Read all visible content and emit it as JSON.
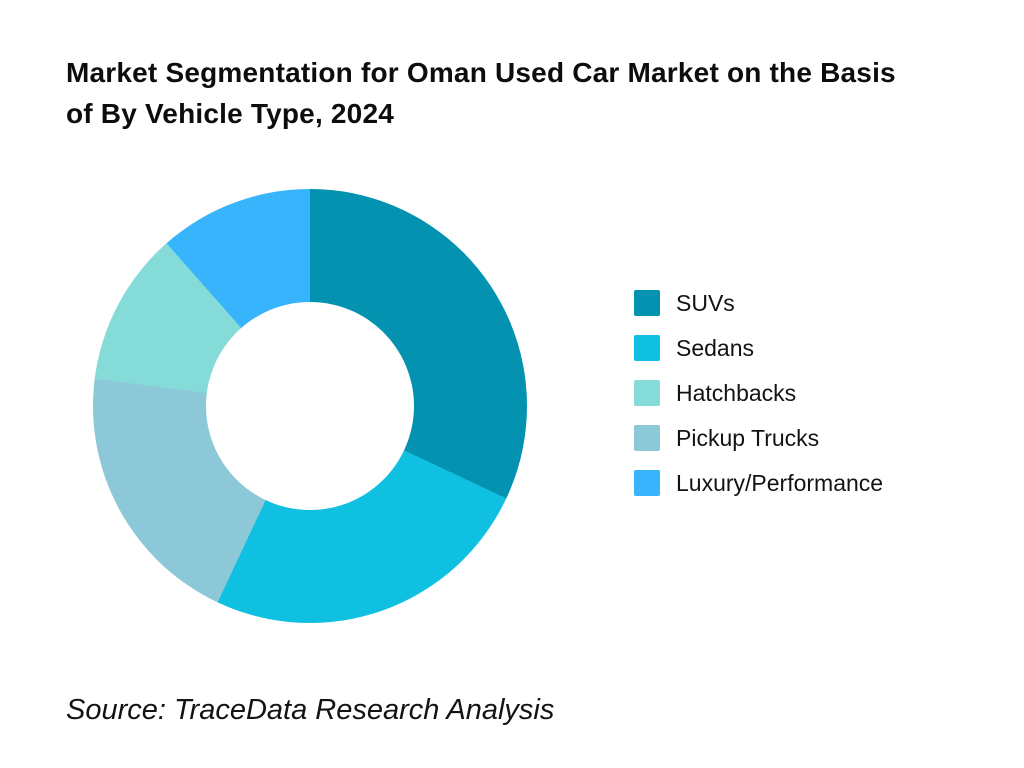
{
  "header": {
    "title": "Market Segmentation for Oman Used Car Market on the Basis\nof By Vehicle Type, 2024"
  },
  "legend": {
    "items": [
      {
        "label": "SUVs",
        "color": "#0392B0"
      },
      {
        "label": "Sedans",
        "color": "#0FC0E0"
      },
      {
        "label": "Hatchbacks",
        "color": "#84DBD8"
      },
      {
        "label": "Pickup Trucks",
        "color": "#8CC8D7"
      },
      {
        "label": "Luxury/Performance",
        "color": "#38B4FC"
      }
    ]
  },
  "footer": {
    "source": "Source: TraceData Research Analysis"
  },
  "colors": {
    "background": "#ffffff",
    "text": "#131315"
  },
  "chart_data": {
    "type": "pie",
    "subtype": "donut",
    "title": "Market Segmentation for Oman Used Car Market on the Basis of By Vehicle Type, 2024",
    "categories": [
      "SUVs",
      "Sedans",
      "Hatchbacks",
      "Pickup Trucks",
      "Luxury/Performance"
    ],
    "values": [
      32,
      25,
      11.5,
      20,
      11.5
    ],
    "colors": [
      "#0392B0",
      "#0FC0E0",
      "#84DBD8",
      "#8CC8D7",
      "#38B4FC"
    ],
    "units": "percent",
    "values_estimated_from_arc_angles": true,
    "slices_clockwise_from_top": [
      {
        "label": "SUVs",
        "value": 32,
        "color": "#0392B0"
      },
      {
        "label": "Sedans",
        "value": 25,
        "color": "#0FC0E0"
      },
      {
        "label": "Pickup Trucks",
        "value": 20,
        "color": "#8CC8D7"
      },
      {
        "label": "Hatchbacks",
        "value": 11.5,
        "color": "#84DBD8"
      },
      {
        "label": "Luxury/Performance",
        "value": 11.5,
        "color": "#38B4FC"
      }
    ],
    "start_angle_deg_clockwise_from_top": 0,
    "inner_radius_ratio": 0.48,
    "legend_position": "right",
    "data_labels_shown": false,
    "source": "Source: TraceData Research Analysis"
  }
}
